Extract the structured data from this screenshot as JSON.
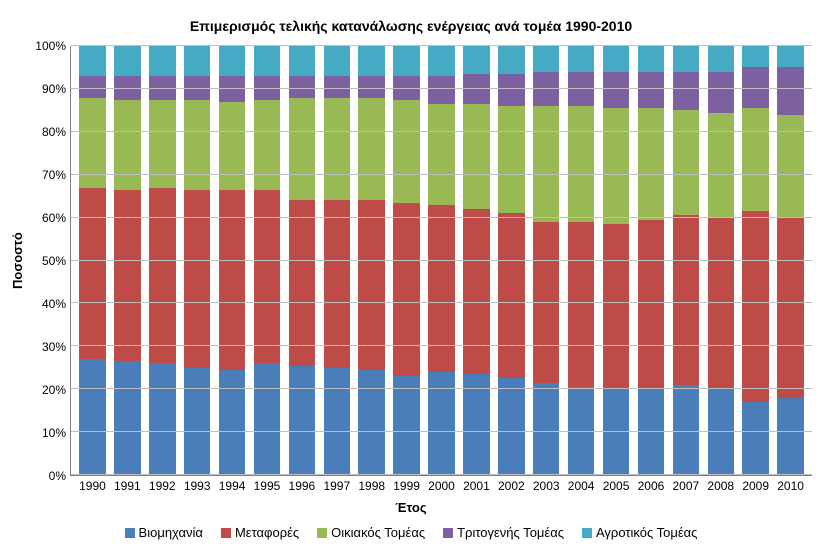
{
  "chart": {
    "type": "stacked-bar-100",
    "title": "Επιμερισμός τελικής κατανάλωσης ενέργειας ανά τομέα 1990-2010",
    "title_fontsize": 14,
    "xlabel": "Έτος",
    "ylabel": "Ποσοστό",
    "label_fontsize": 13,
    "tick_fontsize": 12,
    "background_color": "#ffffff",
    "grid_color": "#bfbfbf",
    "axis_color": "#808080",
    "ylim": [
      0,
      100
    ],
    "ytick_step": 10,
    "ytick_suffix": "%",
    "bar_width_ratio": 0.76,
    "categories": [
      "1990",
      "1991",
      "1992",
      "1993",
      "1994",
      "1995",
      "1996",
      "1997",
      "1998",
      "1999",
      "2000",
      "2001",
      "2002",
      "2003",
      "2004",
      "2005",
      "2006",
      "2007",
      "2008",
      "2009",
      "2010"
    ],
    "series": [
      {
        "name": "Βιομηχανία",
        "color": "#4a7ebb"
      },
      {
        "name": "Μεταφορές",
        "color": "#be4b48"
      },
      {
        "name": "Οικιακός Τομέας",
        "color": "#98b954"
      },
      {
        "name": "Τριτογενής Τομέας",
        "color": "#7d60a0"
      },
      {
        "name": "Αγροτικός Τομέας",
        "color": "#46aac5"
      }
    ],
    "values": [
      [
        27,
        40,
        21,
        5,
        7
      ],
      [
        26.5,
        40,
        21,
        5.5,
        7
      ],
      [
        26,
        41,
        20.5,
        5.5,
        7
      ],
      [
        25,
        41.5,
        21,
        5.5,
        7
      ],
      [
        24.5,
        42,
        20.5,
        6,
        7
      ],
      [
        26,
        40.5,
        21,
        5.5,
        7
      ],
      [
        25.5,
        38.5,
        24,
        5,
        7
      ],
      [
        25,
        39,
        24,
        5,
        7
      ],
      [
        24.5,
        39.5,
        24,
        5,
        7
      ],
      [
        23,
        40.5,
        24,
        5.5,
        7
      ],
      [
        24,
        39,
        23.5,
        6.5,
        7
      ],
      [
        23.5,
        38.5,
        24.5,
        7,
        6.5
      ],
      [
        22.5,
        38.5,
        25,
        7.5,
        6.5
      ],
      [
        21.5,
        37.5,
        27,
        8,
        6
      ],
      [
        20.5,
        38.5,
        27,
        8,
        6
      ],
      [
        20,
        38.5,
        27,
        8.5,
        6
      ],
      [
        20,
        39.5,
        26,
        8.5,
        6
      ],
      [
        21,
        39.5,
        24.5,
        9,
        6
      ],
      [
        20,
        40,
        24.5,
        9.5,
        6
      ],
      [
        17,
        44.5,
        24,
        9.5,
        5
      ],
      [
        18,
        42,
        24,
        11,
        5
      ]
    ]
  }
}
